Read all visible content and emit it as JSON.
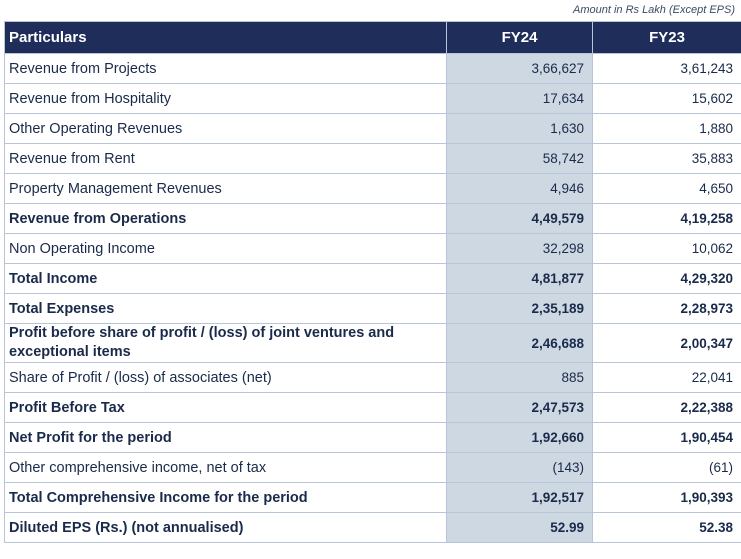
{
  "note": "Amount in Rs Lakh (Except EPS)",
  "headers": {
    "particulars": "Particulars",
    "fy24": "FY24",
    "fy23": "FY23"
  },
  "rows": [
    {
      "label": "Revenue from Projects",
      "fy24": "3,66,627",
      "fy23": "3,61,243"
    },
    {
      "label": "Revenue from Hospitality",
      "fy24": "17,634",
      "fy23": "15,602"
    },
    {
      "label": "Other Operating Revenues",
      "fy24": "1,630",
      "fy23": "1,880"
    },
    {
      "label": "Revenue from Rent",
      "fy24": "58,742",
      "fy23": "35,883"
    },
    {
      "label": "Property Management Revenues",
      "fy24": "4,946",
      "fy23": "4,650"
    },
    {
      "label": "Revenue from Operations",
      "fy24": "4,49,579",
      "fy23": "4,19,258"
    },
    {
      "label": "Non Operating Income",
      "fy24": "32,298",
      "fy23": "10,062"
    },
    {
      "label": "Total Income",
      "fy24": "4,81,877",
      "fy23": "4,29,320"
    },
    {
      "label": "Total Expenses",
      "fy24": "2,35,189",
      "fy23": "2,28,973"
    },
    {
      "label": "Profit before share of profit / (loss) of joint ventures and exceptional items",
      "fy24": "2,46,688",
      "fy23": "2,00,347"
    },
    {
      "label": "Share of Profit / (loss) of associates (net)",
      "fy24": "885",
      "fy23": "22,041"
    },
    {
      "label": "Profit Before Tax",
      "fy24": "2,47,573",
      "fy23": "2,22,388"
    },
    {
      "label": "Net Profit for the period",
      "fy24": "1,92,660",
      "fy23": "1,90,454"
    },
    {
      "label": "Other comprehensive income, net of tax",
      "fy24": "(143)",
      "fy23": "(61)"
    },
    {
      "label": "Total Comprehensive Income for the period",
      "fy24": "1,92,517",
      "fy23": "1,90,393"
    },
    {
      "label": "Diluted EPS (Rs.) (not annualised)",
      "fy24": "52.99",
      "fy23": "52.38"
    }
  ]
}
